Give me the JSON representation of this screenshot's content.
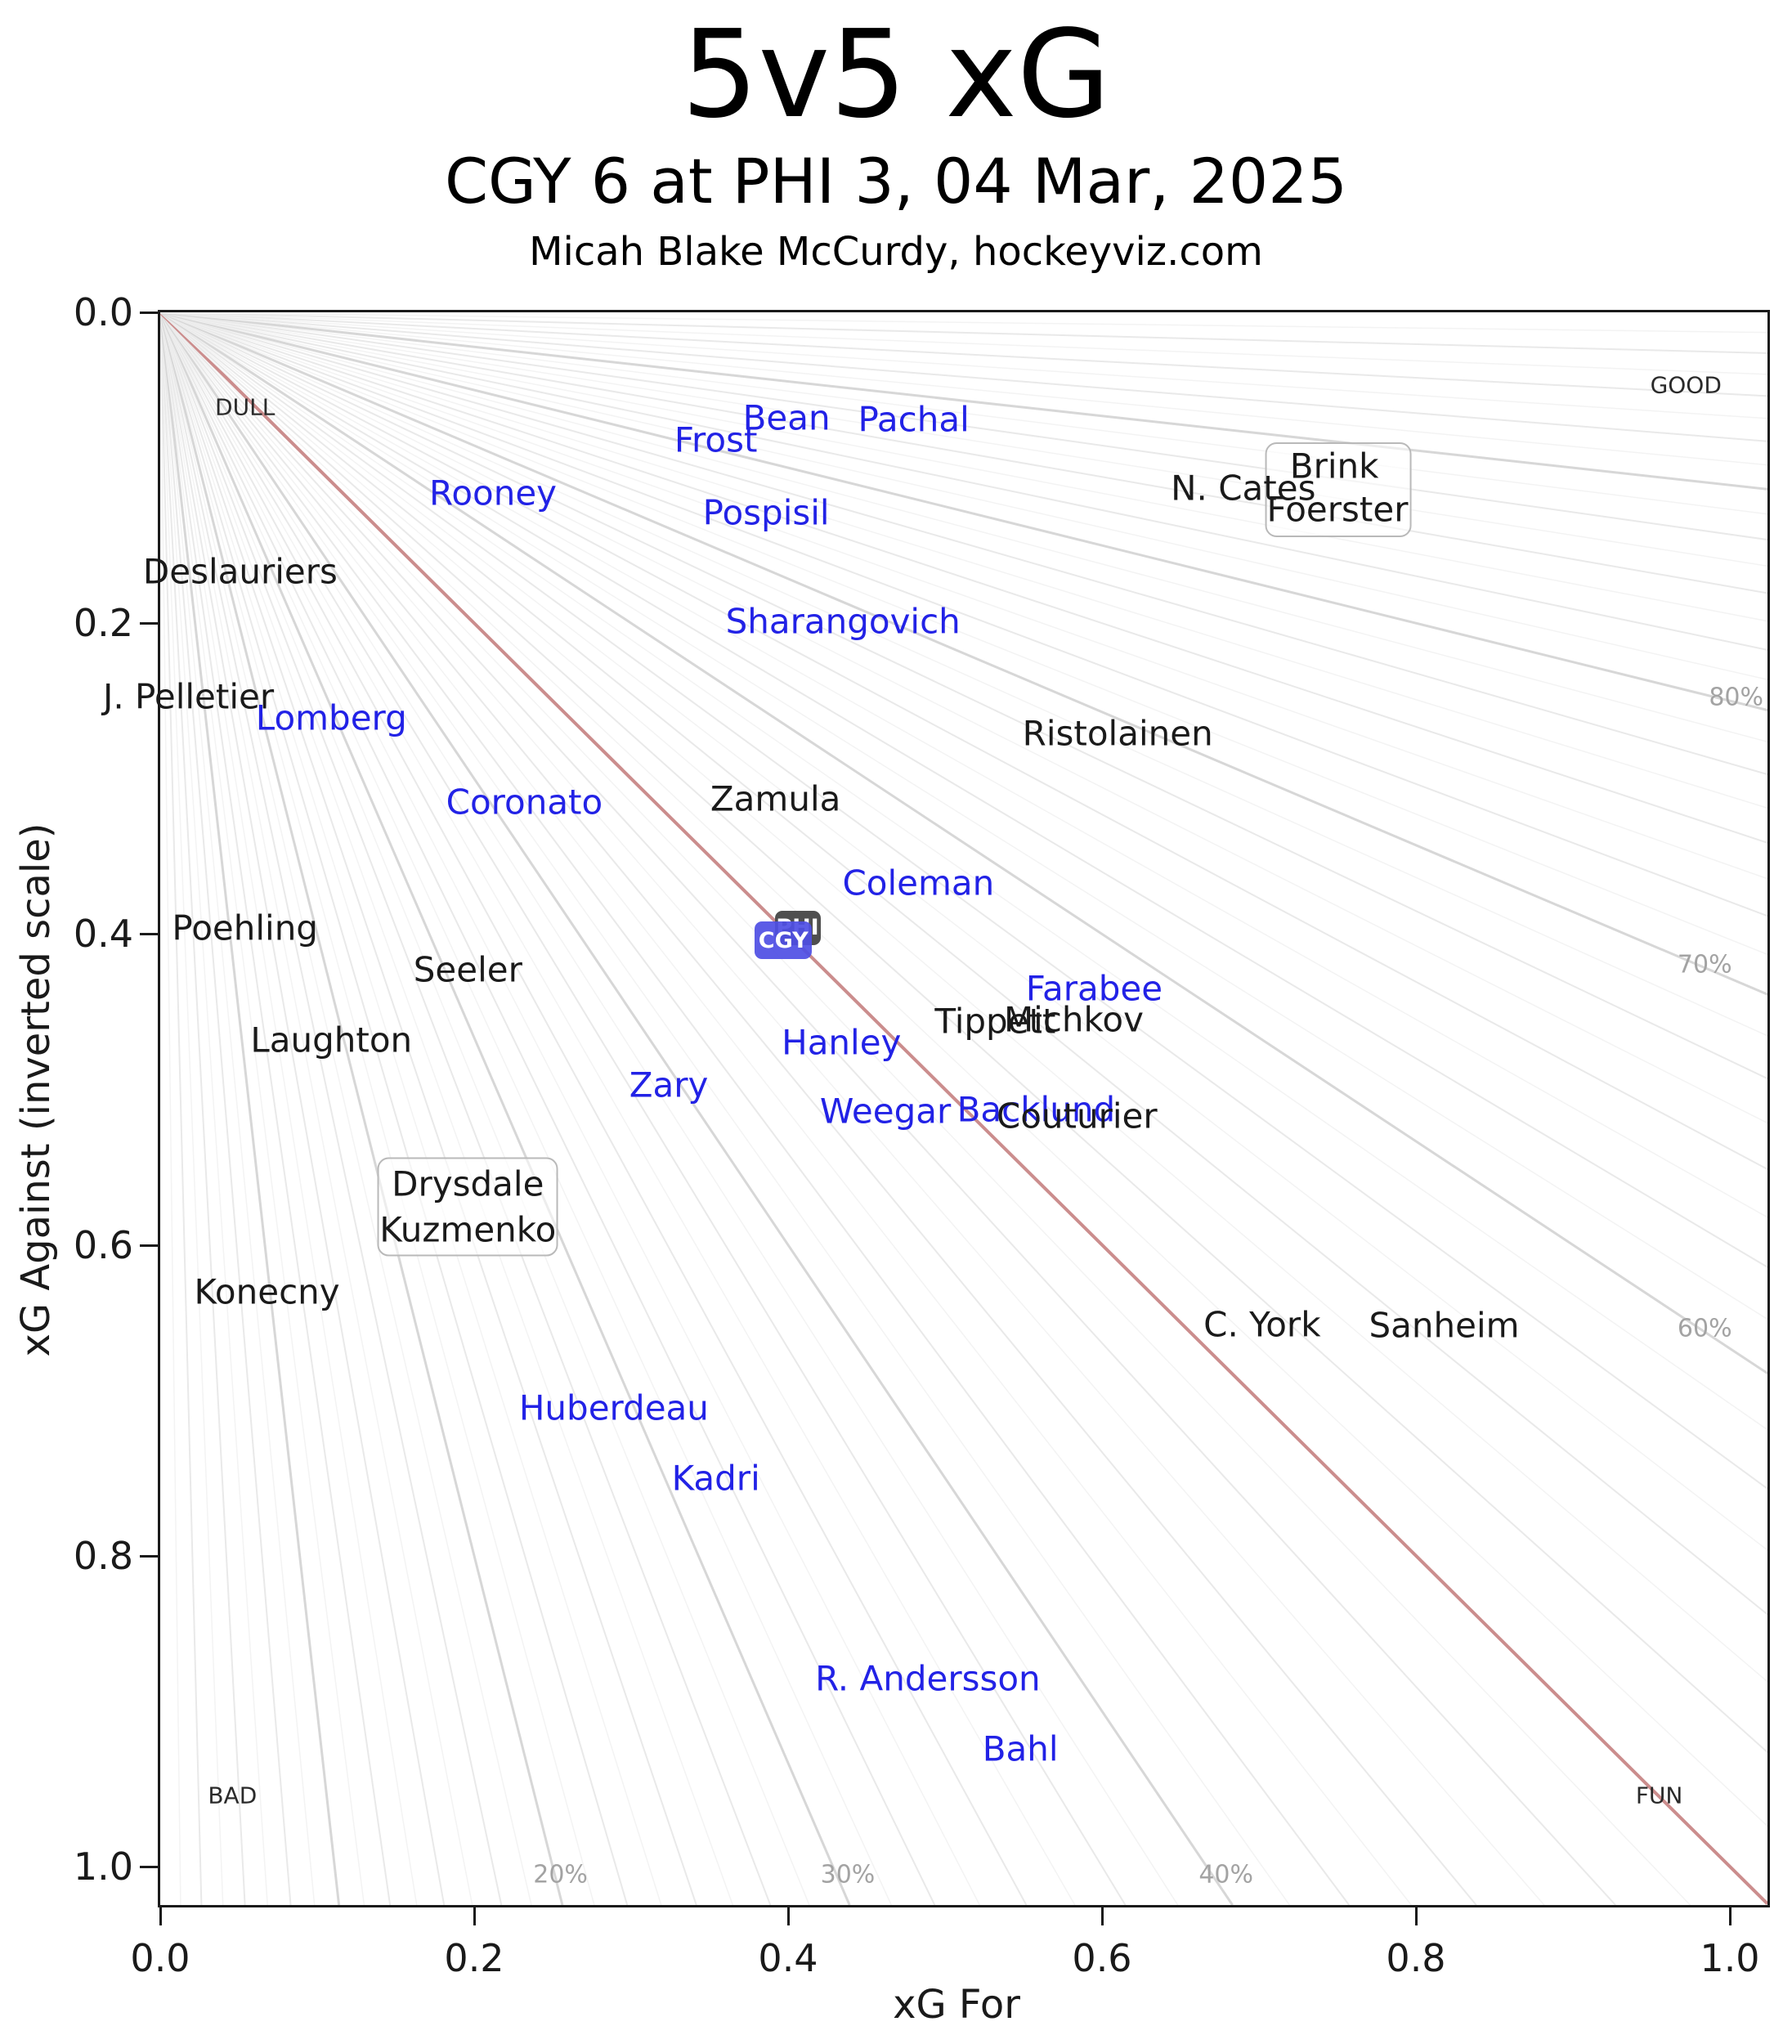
{
  "header": {
    "title": "5v5 xG",
    "subtitle": "CGY 6 at PHI 3, 04 Mar, 2025",
    "attribution": "Micah Blake McCurdy, hockeyviz.com"
  },
  "axes": {
    "x_label": "xG For",
    "y_label": "xG Against (inverted scale)",
    "x_ticks": [
      "0.0",
      "0.2",
      "0.4",
      "0.6",
      "0.8",
      "1.0"
    ],
    "y_ticks": [
      "0.0",
      "0.2",
      "0.4",
      "0.6",
      "0.8",
      "1.0"
    ]
  },
  "chart_data": {
    "type": "scatter",
    "title": "5v5 xG",
    "xlabel": "xG For",
    "ylabel": "xG Against (inverted scale)",
    "xlim": [
      0,
      1.024
    ],
    "ylim": [
      0,
      1.025
    ],
    "y_inverted": true,
    "grid": "radial fan of shooting-share percentage lines from origin",
    "teams": {
      "CGY": {
        "color": "#2222e6"
      },
      "PHI": {
        "color": "#1a1a1a"
      }
    },
    "players": [
      {
        "name": "Bean",
        "team": "CGY",
        "x": 0.399,
        "y": 0.068
      },
      {
        "name": "Pachal",
        "team": "CGY",
        "x": 0.48,
        "y": 0.069
      },
      {
        "name": "Frost",
        "team": "CGY",
        "x": 0.354,
        "y": 0.082
      },
      {
        "name": "Rooney",
        "team": "CGY",
        "x": 0.212,
        "y": 0.116
      },
      {
        "name": "Pospisil",
        "team": "CGY",
        "x": 0.386,
        "y": 0.129
      },
      {
        "name": "Sharangovich",
        "team": "CGY",
        "x": 0.435,
        "y": 0.199
      },
      {
        "name": "Lomberg",
        "team": "CGY",
        "x": 0.109,
        "y": 0.261
      },
      {
        "name": "Coronato",
        "team": "CGY",
        "x": 0.232,
        "y": 0.315
      },
      {
        "name": "Coleman",
        "team": "CGY",
        "x": 0.483,
        "y": 0.367
      },
      {
        "name": "Farabee",
        "team": "CGY",
        "x": 0.595,
        "y": 0.435
      },
      {
        "name": "Hanley",
        "team": "CGY",
        "x": 0.434,
        "y": 0.47
      },
      {
        "name": "Zary",
        "team": "CGY",
        "x": 0.324,
        "y": 0.497
      },
      {
        "name": "Weegar",
        "team": "CGY",
        "x": 0.462,
        "y": 0.514
      },
      {
        "name": "Backlund",
        "team": "CGY",
        "x": 0.558,
        "y": 0.513
      },
      {
        "name": "Huberdeau",
        "team": "CGY",
        "x": 0.289,
        "y": 0.705
      },
      {
        "name": "Kadri",
        "team": "CGY",
        "x": 0.354,
        "y": 0.75
      },
      {
        "name": "R. Andersson",
        "team": "CGY",
        "x": 0.489,
        "y": 0.879
      },
      {
        "name": "Bahl",
        "team": "CGY",
        "x": 0.548,
        "y": 0.924
      },
      {
        "name": "N. Cates",
        "team": "PHI",
        "x": 0.69,
        "y": 0.113
      },
      {
        "name": "Brink",
        "team": "PHI",
        "x": 0.748,
        "y": 0.099
      },
      {
        "name": "Foerster",
        "team": "PHI",
        "x": 0.75,
        "y": 0.127
      },
      {
        "name": "Deslauriers",
        "team": "PHI",
        "x": 0.051,
        "y": 0.167
      },
      {
        "name": "J. Pelletier",
        "team": "PHI",
        "x": 0.018,
        "y": 0.247
      },
      {
        "name": "Ristolainen",
        "team": "PHI",
        "x": 0.61,
        "y": 0.271
      },
      {
        "name": "Zamula",
        "team": "PHI",
        "x": 0.392,
        "y": 0.313
      },
      {
        "name": "Poehling",
        "team": "PHI",
        "x": 0.054,
        "y": 0.396
      },
      {
        "name": "Seeler",
        "team": "PHI",
        "x": 0.196,
        "y": 0.423
      },
      {
        "name": "Laughton",
        "team": "PHI",
        "x": 0.109,
        "y": 0.468
      },
      {
        "name": "Tippett",
        "team": "PHI",
        "x": 0.532,
        "y": 0.456
      },
      {
        "name": "Michkov",
        "team": "PHI",
        "x": 0.582,
        "y": 0.455
      },
      {
        "name": "Couturier",
        "team": "PHI",
        "x": 0.584,
        "y": 0.517
      },
      {
        "name": "Drysdale",
        "team": "PHI",
        "x": 0.196,
        "y": 0.561
      },
      {
        "name": "Kuzmenko",
        "team": "PHI",
        "x": 0.196,
        "y": 0.59
      },
      {
        "name": "Konecny",
        "team": "PHI",
        "x": 0.068,
        "y": 0.63
      },
      {
        "name": "C. York",
        "team": "PHI",
        "x": 0.702,
        "y": 0.651
      },
      {
        "name": "Sanheim",
        "team": "PHI",
        "x": 0.818,
        "y": 0.652
      }
    ],
    "boxed_groups": [
      {
        "id": "brink-foerster-box",
        "cx": 0.7505,
        "cy": 0.1142,
        "w": 0.0911,
        "h": 0.0589
      },
      {
        "id": "drysdale-kuzmenko-box",
        "cx": 0.1958,
        "cy": 0.5755,
        "w": 0.113,
        "h": 0.0615
      }
    ],
    "team_markers": [
      {
        "label": "PHI",
        "x": 0.406,
        "y": 0.396,
        "bg": "#4f4f4f",
        "w": 56,
        "h": 42,
        "z": 5
      },
      {
        "label": "CGY",
        "x": 0.397,
        "y": 0.404,
        "bg": "rgba(78,78,228,0.92)",
        "w": 70,
        "h": 46,
        "z": 6
      }
    ],
    "corner_labels": [
      {
        "text": "DULL",
        "x": 0.054,
        "y": 0.061
      },
      {
        "text": "GOOD",
        "x": 0.972,
        "y": 0.047
      },
      {
        "text": "BAD",
        "x": 0.046,
        "y": 0.954
      },
      {
        "text": "FUN",
        "x": 0.955,
        "y": 0.954
      }
    ],
    "pct_labels": [
      {
        "text": "20%",
        "x": 0.255,
        "y": 1.005
      },
      {
        "text": "30%",
        "x": 0.438,
        "y": 1.005
      },
      {
        "text": "40%",
        "x": 0.679,
        "y": 1.005
      },
      {
        "text": "60%",
        "x": 0.984,
        "y": 0.654
      },
      {
        "text": "70%",
        "x": 0.984,
        "y": 0.42
      },
      {
        "text": "80%",
        "x": 1.004,
        "y": 0.248
      }
    ],
    "reference_lines": {
      "even_strength_line_pct": 50,
      "even_line_color": "#cb8d8d",
      "fan_step_pct": 1.25,
      "fan_minor_color": "#f3f3f3",
      "fan_mid_color": "#e9e9e9",
      "fan_major_color": "#d7d7d7"
    }
  }
}
